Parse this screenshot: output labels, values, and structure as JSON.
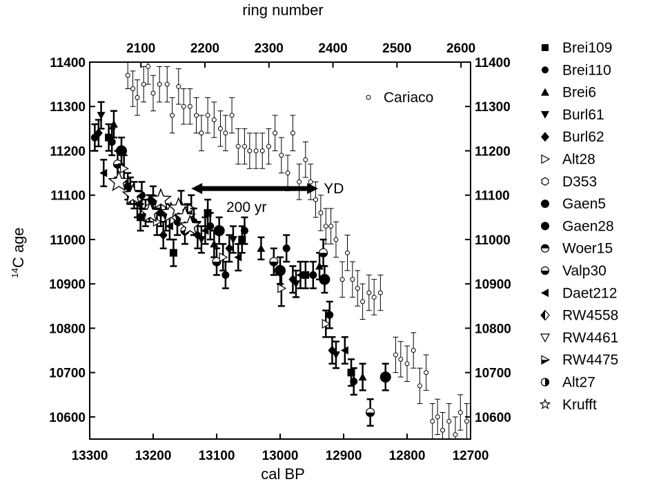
{
  "chart_data": {
    "type": "scatter",
    "x_label": "cal BP",
    "top_x_label": "ring number",
    "y_label": "C age",
    "y_label_superscript": "14",
    "x_range": [
      13300,
      12700
    ],
    "top_x_range": [
      2020,
      2615
    ],
    "y_range": [
      10550,
      11400
    ],
    "x_ticks": [
      13300,
      13200,
      13100,
      13000,
      12900,
      12800,
      12700
    ],
    "top_x_ticks": [
      2100,
      2200,
      2300,
      2400,
      2500,
      2600
    ],
    "y_ticks": [
      10600,
      10700,
      10800,
      10900,
      11000,
      11100,
      11200,
      11300,
      11400
    ],
    "cariaco": {
      "name": "Cariaco",
      "points": [
        [
          13240,
          11370,
          30
        ],
        [
          13232,
          11340,
          40
        ],
        [
          13225,
          11320,
          40
        ],
        [
          13215,
          11350,
          40
        ],
        [
          13208,
          11390,
          40
        ],
        [
          13200,
          11330,
          40
        ],
        [
          13190,
          11350,
          40
        ],
        [
          13178,
          11350,
          40
        ],
        [
          13170,
          11280,
          40
        ],
        [
          13160,
          11345,
          40
        ],
        [
          13152,
          11300,
          40
        ],
        [
          13142,
          11300,
          40
        ],
        [
          13132,
          11280,
          40
        ],
        [
          13124,
          11240,
          40
        ],
        [
          13114,
          11280,
          40
        ],
        [
          13104,
          11270,
          40
        ],
        [
          13094,
          11250,
          40
        ],
        [
          13086,
          11240,
          40
        ],
        [
          13076,
          11280,
          40
        ],
        [
          13066,
          11210,
          40
        ],
        [
          13056,
          11210,
          40
        ],
        [
          13048,
          11200,
          40
        ],
        [
          13038,
          11200,
          40
        ],
        [
          13028,
          11200,
          40
        ],
        [
          13018,
          11210,
          40
        ],
        [
          13008,
          11240,
          40
        ],
        [
          12998,
          11190,
          40
        ],
        [
          12988,
          11150,
          40
        ],
        [
          12980,
          11240,
          40
        ],
        [
          12970,
          11130,
          40
        ],
        [
          12960,
          11180,
          40
        ],
        [
          12952,
          11130,
          40
        ],
        [
          12944,
          11090,
          40
        ],
        [
          12936,
          11060,
          40
        ],
        [
          12928,
          11030,
          40
        ],
        [
          12920,
          11030,
          40
        ],
        [
          12912,
          11000,
          40
        ],
        [
          12902,
          10910,
          40
        ],
        [
          12894,
          10970,
          40
        ],
        [
          12886,
          10910,
          40
        ],
        [
          12878,
          10890,
          40
        ],
        [
          12870,
          10860,
          40
        ],
        [
          12860,
          10880,
          40
        ],
        [
          12852,
          10870,
          40
        ],
        [
          12842,
          10880,
          40
        ],
        [
          12818,
          10740,
          40
        ],
        [
          12810,
          10730,
          40
        ],
        [
          12800,
          10720,
          40
        ],
        [
          12790,
          10750,
          40
        ],
        [
          12780,
          10670,
          40
        ],
        [
          12770,
          10700,
          40
        ],
        [
          12760,
          10590,
          40
        ],
        [
          12752,
          10600,
          40
        ],
        [
          12744,
          10570,
          40
        ],
        [
          12734,
          10590,
          40
        ],
        [
          12724,
          10560,
          40
        ],
        [
          12716,
          10610,
          40
        ],
        [
          12706,
          10590,
          40
        ]
      ]
    },
    "tree_rings": {
      "points": [
        [
          13292,
          11230,
          30
        ],
        [
          13286,
          11240,
          30
        ],
        [
          13282,
          11280,
          30
        ],
        [
          13278,
          11150,
          30
        ],
        [
          13270,
          11230,
          30
        ],
        [
          13265,
          11220,
          30
        ],
        [
          13262,
          11260,
          30
        ],
        [
          13256,
          11170,
          30
        ],
        [
          13250,
          11200,
          30
        ],
        [
          13246,
          11160,
          30
        ],
        [
          13240,
          11120,
          30
        ],
        [
          13236,
          11110,
          30
        ],
        [
          13230,
          11100,
          30
        ],
        [
          13225,
          11080,
          30
        ],
        [
          13220,
          11050,
          30
        ],
        [
          13218,
          11100,
          30
        ],
        [
          13212,
          11060,
          30
        ],
        [
          13206,
          11070,
          30
        ],
        [
          13200,
          11090,
          30
        ],
        [
          13194,
          11040,
          30
        ],
        [
          13188,
          11060,
          30
        ],
        [
          13184,
          11010,
          30
        ],
        [
          13180,
          11050,
          30
        ],
        [
          13174,
          11030,
          30
        ],
        [
          13168,
          10970,
          30
        ],
        [
          13162,
          11040,
          30
        ],
        [
          13156,
          11080,
          30
        ],
        [
          13150,
          11020,
          30
        ],
        [
          13146,
          11050,
          30
        ],
        [
          13140,
          11070,
          30
        ],
        [
          13136,
          11040,
          30
        ],
        [
          13130,
          11010,
          30
        ],
        [
          13124,
          11000,
          30
        ],
        [
          13118,
          11020,
          30
        ],
        [
          13114,
          11060,
          30
        ],
        [
          13110,
          11030,
          30
        ],
        [
          13104,
          10990,
          30
        ],
        [
          13100,
          10950,
          30
        ],
        [
          13096,
          11020,
          30
        ],
        [
          13090,
          10960,
          30
        ],
        [
          13086,
          10920,
          30
        ],
        [
          13080,
          10980,
          30
        ],
        [
          13074,
          11000,
          30
        ],
        [
          13066,
          10960,
          30
        ],
        [
          13060,
          11000,
          30
        ],
        [
          13056,
          11020,
          30
        ],
        [
          13030,
          10980,
          25
        ],
        [
          13010,
          10950,
          30
        ],
        [
          13000,
          10930,
          30
        ],
        [
          12998,
          10890,
          40
        ],
        [
          12990,
          10980,
          30
        ],
        [
          12980,
          10910,
          30
        ],
        [
          12975,
          10900,
          30
        ],
        [
          12968,
          10920,
          30
        ],
        [
          12960,
          10920,
          30
        ],
        [
          12948,
          10920,
          30
        ],
        [
          12938,
          10940,
          30
        ],
        [
          12932,
          10970,
          30
        ],
        [
          12930,
          10910,
          30
        ],
        [
          12928,
          10810,
          30
        ],
        [
          12922,
          10830,
          30
        ],
        [
          12918,
          10750,
          30
        ],
        [
          12912,
          10740,
          30
        ],
        [
          12898,
          10750,
          30
        ],
        [
          12888,
          10700,
          30
        ],
        [
          12884,
          10680,
          30
        ],
        [
          12870,
          10690,
          30
        ],
        [
          12858,
          10610,
          30
        ],
        [
          12834,
          10690,
          30
        ]
      ]
    },
    "krufft": {
      "name": "Krufft",
      "points": [
        [
          13254,
          11130
        ],
        [
          13232,
          11100
        ],
        [
          13205,
          11060
        ],
        [
          13188,
          11090
        ],
        [
          13172,
          11060
        ],
        [
          13160,
          11070
        ],
        [
          13150,
          11050
        ],
        [
          13142,
          11030
        ]
      ]
    },
    "yd_arrow": {
      "from": [
        13140,
        11115
      ],
      "to": [
        12940,
        11115
      ],
      "label": "YD",
      "sub_label": "200 yr"
    },
    "legend": [
      {
        "label": "Brei109",
        "marker": "square-filled"
      },
      {
        "label": "Brei110",
        "marker": "circle-filled"
      },
      {
        "label": "Brei6",
        "marker": "triangle-up-filled"
      },
      {
        "label": "Burl61",
        "marker": "triangle-down-filled"
      },
      {
        "label": "Burl62",
        "marker": "diamond-filled"
      },
      {
        "label": "Alt28",
        "marker": "triangle-right-open"
      },
      {
        "label": "D353",
        "marker": "hexagon-open"
      },
      {
        "label": "Gaen5",
        "marker": "circle-filled-large"
      },
      {
        "label": "Gaen28",
        "marker": "circle-filled-large"
      },
      {
        "label": "Woer15",
        "marker": "circle-half-top"
      },
      {
        "label": "Valp30",
        "marker": "circle-half-bottom"
      },
      {
        "label": "Daet212",
        "marker": "triangle-left-filled"
      },
      {
        "label": "RW4558",
        "marker": "diamond-half"
      },
      {
        "label": "RW4461",
        "marker": "triangle-down-open"
      },
      {
        "label": "RW4475",
        "marker": "triangle-right-half"
      },
      {
        "label": "Alt27",
        "marker": "circle-half-left"
      },
      {
        "label": "Krufft",
        "marker": "star-open"
      }
    ],
    "cariaco_legend_label": "Cariaco"
  }
}
